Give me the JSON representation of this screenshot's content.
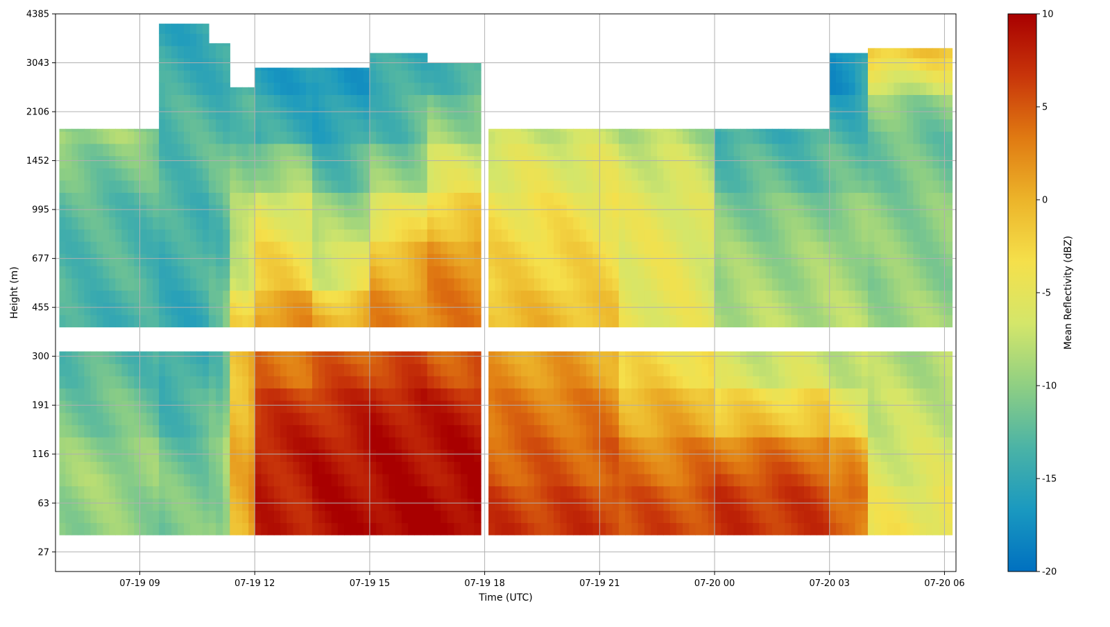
{
  "chart_data": {
    "type": "heatmap",
    "title": "",
    "xlabel": "Time (UTC)",
    "ylabel": "Height (m)",
    "colorbar_label": "Mean Reflectivity (dBZ)",
    "x_ticks": [
      "07-19 09",
      "07-19 12",
      "07-19 15",
      "07-19 18",
      "07-19 21",
      "07-20 00",
      "07-20 03",
      "07-20 06"
    ],
    "x_tick_hours": [
      9,
      12,
      15,
      18,
      21,
      24,
      27,
      30
    ],
    "xlim_hours": [
      6.8,
      30.3
    ],
    "y_ticks": [
      "27",
      "63",
      "116",
      "191",
      "300",
      "455",
      "677",
      "995",
      "1452",
      "2106",
      "3043",
      "4385"
    ],
    "colorbar_ticks": [
      -20,
      -15,
      -10,
      -5,
      0,
      5,
      10
    ],
    "colorbar_range": [
      -20,
      10
    ],
    "colormap": [
      "#0070c0",
      "#1a99c0",
      "#4bb3a6",
      "#8fcf83",
      "#d4e66a",
      "#f5e04b",
      "#ecb42a",
      "#e07a12",
      "#c8350a",
      "#a80000"
    ],
    "grid": true,
    "lower_gap_levels": [
      4.2,
      4.5
    ],
    "data": {
      "description": "Mean reflectivity (dBZ) by time segment and height level",
      "time_segments": [
        {
          "start": 6.9,
          "end": 9.5,
          "top": 8.65,
          "values": [
            -10,
            -9,
            -11,
            -12,
            -14,
            -13,
            -13,
            -12,
            -9,
            -11
          ]
        },
        {
          "start": 9.5,
          "end": 10.8,
          "top": 10.8,
          "values": [
            -11,
            -11,
            -13,
            -14,
            -15,
            -14,
            -14,
            -13,
            -13,
            -14,
            -15
          ]
        },
        {
          "start": 10.8,
          "end": 11.35,
          "top": 10.4,
          "values": [
            -10,
            -10,
            -12,
            -12,
            -13,
            -13,
            -13,
            -12,
            -13,
            -14,
            -15
          ]
        },
        {
          "start": 11.35,
          "end": 12.0,
          "top": 9.5,
          "values": [
            0,
            0,
            0,
            -1,
            -2,
            -6,
            -8,
            -10,
            -12,
            -14,
            -15
          ]
        },
        {
          "start": 12.0,
          "end": 13.5,
          "top": 9.9,
          "values": [
            8,
            8,
            8,
            4,
            3,
            -2,
            -4,
            -8,
            -14,
            -16,
            -16
          ]
        },
        {
          "start": 13.5,
          "end": 15.0,
          "top": 9.9,
          "values": [
            9,
            9,
            8,
            6,
            2,
            -6,
            -8,
            -12,
            -15,
            -17,
            -16
          ]
        },
        {
          "start": 15.0,
          "end": 16.5,
          "top": 10.2,
          "values": [
            10,
            9,
            9,
            7,
            3,
            1,
            -3,
            -9,
            -13,
            -14,
            -15
          ]
        },
        {
          "start": 16.5,
          "end": 17.9,
          "top": 10.0,
          "values": [
            10,
            9,
            9,
            6,
            3,
            3,
            0,
            -5,
            -9,
            -13,
            -15
          ]
        },
        {
          "start": 18.1,
          "end": 21.5,
          "top": 8.65,
          "values": [
            7,
            5,
            4,
            2,
            0,
            -2,
            -3,
            -5,
            -7,
            -8
          ]
        },
        {
          "start": 21.5,
          "end": 24.0,
          "top": 8.65,
          "values": [
            6,
            4,
            1,
            -2,
            -5,
            -5,
            -5,
            -6,
            -8,
            -9
          ]
        },
        {
          "start": 24.0,
          "end": 27.0,
          "top": 8.65,
          "values": [
            7,
            6,
            0,
            -6,
            -8,
            -9,
            -10,
            -12,
            -14,
            -13
          ]
        },
        {
          "start": 27.0,
          "end": 28.0,
          "top": 10.2,
          "values": [
            5,
            4,
            -3,
            -7,
            -8,
            -9,
            -9,
            -12,
            -13,
            -17,
            -18
          ]
        },
        {
          "start": 28.0,
          "end": 30.2,
          "top": 10.3,
          "values": [
            -4,
            -6,
            -7,
            -8,
            -9,
            -10,
            -10,
            -11,
            -12,
            -8,
            4
          ]
        }
      ]
    }
  }
}
